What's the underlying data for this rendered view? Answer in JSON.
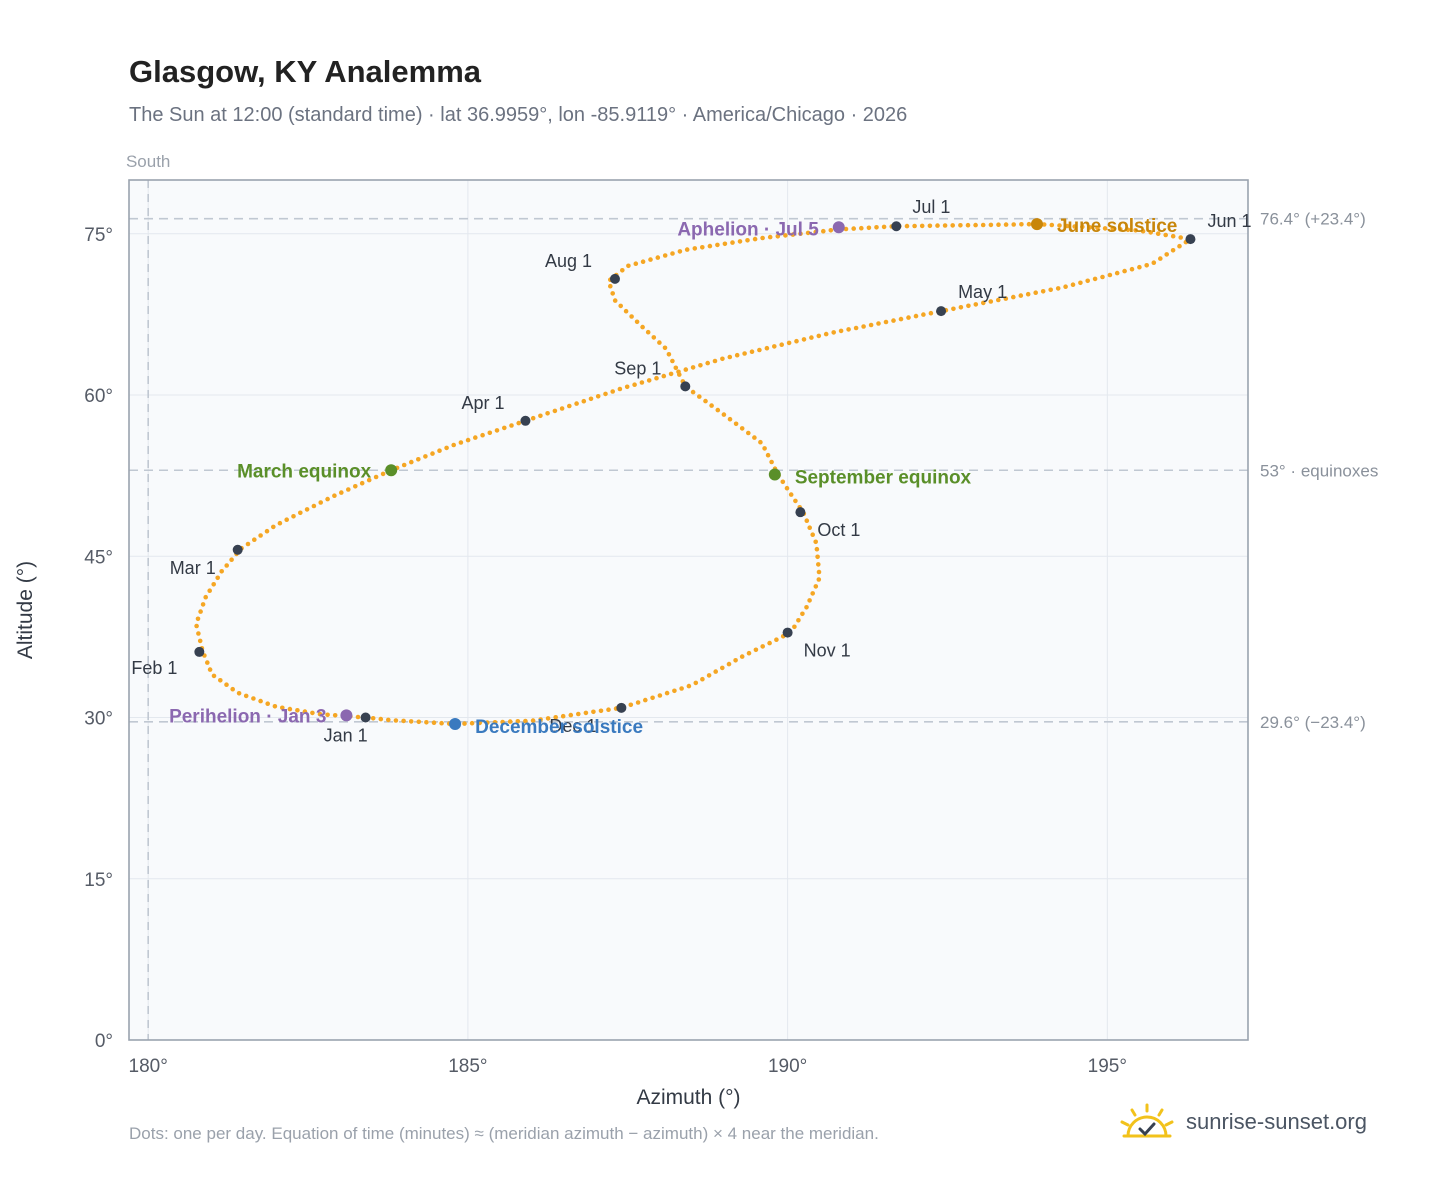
{
  "header": {
    "title": "Glasgow, KY Analemma",
    "subtitle": "The Sun at 12:00 (standard time) · lat 36.9959°, lon -85.9119° · America/Chicago · 2026"
  },
  "footer": {
    "note": "Dots: one per day. Equation of time (minutes) ≈ (meridian azimuth − azimuth) × 4 near the meridian.",
    "brand": "sunrise-sunset.org",
    "brand_icon": "sun-check-icon"
  },
  "colors": {
    "curve": "#f5a623",
    "month_marker": "#374151",
    "equinox": "#5a8f29",
    "june_solstice": "#c8860a",
    "december_solstice": "#3a7abf",
    "perihelion_aphelion": "#8b68b0",
    "reference_line": "#c0c8d2",
    "plot_bg": "#f8fafc"
  },
  "chart_data": {
    "type": "scatter",
    "title": "Glasgow, KY Analemma",
    "xlabel": "Azimuth (°)",
    "ylabel": "Altitude (°)",
    "xlim": [
      179.7,
      197.2
    ],
    "ylim": [
      0,
      80
    ],
    "x_ticks": [
      180,
      185,
      190,
      195
    ],
    "x_tick_labels": [
      "180°",
      "185°",
      "190°",
      "195°"
    ],
    "y_ticks": [
      0,
      15,
      30,
      45,
      60,
      75
    ],
    "y_tick_labels": [
      "0°",
      "15°",
      "30°",
      "45°",
      "60°",
      "75°"
    ],
    "grid": true,
    "meridian": {
      "azimuth": 180,
      "label": "South"
    },
    "reference_lines": [
      {
        "altitude": 76.4,
        "label": "76.4° (+23.4°)"
      },
      {
        "altitude": 53.0,
        "label": "53° · equinoxes"
      },
      {
        "altitude": 29.6,
        "label": "29.6° (−23.4°)"
      }
    ],
    "series": [
      {
        "type": "curve",
        "points": [
          [
            183.4,
            30.0
          ],
          [
            182.7,
            30.3
          ],
          [
            182.0,
            31.0
          ],
          [
            181.4,
            32.3
          ],
          [
            181.0,
            34.0
          ],
          [
            180.85,
            36.2
          ],
          [
            180.75,
            38.7
          ],
          [
            180.9,
            41.2
          ],
          [
            181.15,
            43.6
          ],
          [
            181.45,
            45.7
          ],
          [
            182.0,
            47.9
          ],
          [
            182.9,
            50.6
          ],
          [
            183.8,
            53.0
          ],
          [
            184.8,
            55.4
          ],
          [
            185.9,
            57.6
          ],
          [
            187.4,
            60.6
          ],
          [
            189.0,
            63.4
          ],
          [
            190.7,
            65.8
          ],
          [
            192.4,
            67.8
          ],
          [
            194.3,
            70.0
          ],
          [
            195.7,
            72.2
          ],
          [
            196.3,
            74.5
          ],
          [
            195.5,
            75.3
          ],
          [
            193.9,
            75.9
          ],
          [
            192.9,
            75.8
          ],
          [
            191.7,
            75.7
          ],
          [
            190.8,
            75.4
          ],
          [
            189.6,
            74.6
          ],
          [
            188.4,
            73.5
          ],
          [
            187.5,
            72.0
          ],
          [
            187.2,
            70.6
          ],
          [
            187.3,
            68.8
          ],
          [
            187.7,
            66.5
          ],
          [
            188.1,
            64.3
          ],
          [
            188.4,
            60.8
          ],
          [
            189.0,
            58.2
          ],
          [
            189.6,
            55.5
          ],
          [
            189.85,
            52.6
          ],
          [
            190.25,
            49.0
          ],
          [
            190.45,
            46.2
          ],
          [
            190.5,
            43.0
          ],
          [
            190.3,
            40.3
          ],
          [
            190.05,
            37.9
          ],
          [
            189.3,
            35.7
          ],
          [
            188.5,
            33.0
          ],
          [
            187.4,
            30.9
          ],
          [
            186.0,
            29.7
          ],
          [
            184.8,
            29.4
          ],
          [
            183.8,
            29.75
          ],
          [
            183.4,
            30.0
          ]
        ]
      },
      {
        "name": "Month markers",
        "type": "markers",
        "points": [
          {
            "label": "Jan 1",
            "az": 183.4,
            "alt": 30.0
          },
          {
            "label": "Feb 1",
            "az": 180.8,
            "alt": 36.1
          },
          {
            "label": "Mar 1",
            "az": 181.4,
            "alt": 45.6
          },
          {
            "label": "Apr 1",
            "az": 185.9,
            "alt": 57.6
          },
          {
            "label": "May 1",
            "az": 192.4,
            "alt": 67.8
          },
          {
            "label": "Jun 1",
            "az": 196.3,
            "alt": 74.5
          },
          {
            "label": "Jul 1",
            "az": 191.7,
            "alt": 75.7
          },
          {
            "label": "Aug 1",
            "az": 187.3,
            "alt": 70.8
          },
          {
            "label": "Sep 1",
            "az": 188.4,
            "alt": 60.8
          },
          {
            "label": "Oct 1",
            "az": 190.2,
            "alt": 49.1
          },
          {
            "label": "Nov 1",
            "az": 190.0,
            "alt": 37.9
          },
          {
            "label": "Dec 1",
            "az": 187.4,
            "alt": 30.9
          }
        ]
      },
      {
        "name": "Events",
        "type": "events",
        "points": [
          {
            "label": "March equinox",
            "az": 183.8,
            "alt": 53.0,
            "color": "equinox"
          },
          {
            "label": "September equinox",
            "az": 189.8,
            "alt": 52.6,
            "color": "equinox"
          },
          {
            "label": "June solstice",
            "az": 193.9,
            "alt": 75.9,
            "color": "june_solstice"
          },
          {
            "label": "December solstice",
            "az": 184.8,
            "alt": 29.4,
            "color": "december_solstice"
          },
          {
            "label": "Perihelion · Jan 3",
            "az": 183.1,
            "alt": 30.2,
            "color": "perihelion_aphelion"
          },
          {
            "label": "Aphelion · Jul 5",
            "az": 190.8,
            "alt": 75.6,
            "color": "perihelion_aphelion"
          }
        ]
      }
    ]
  }
}
